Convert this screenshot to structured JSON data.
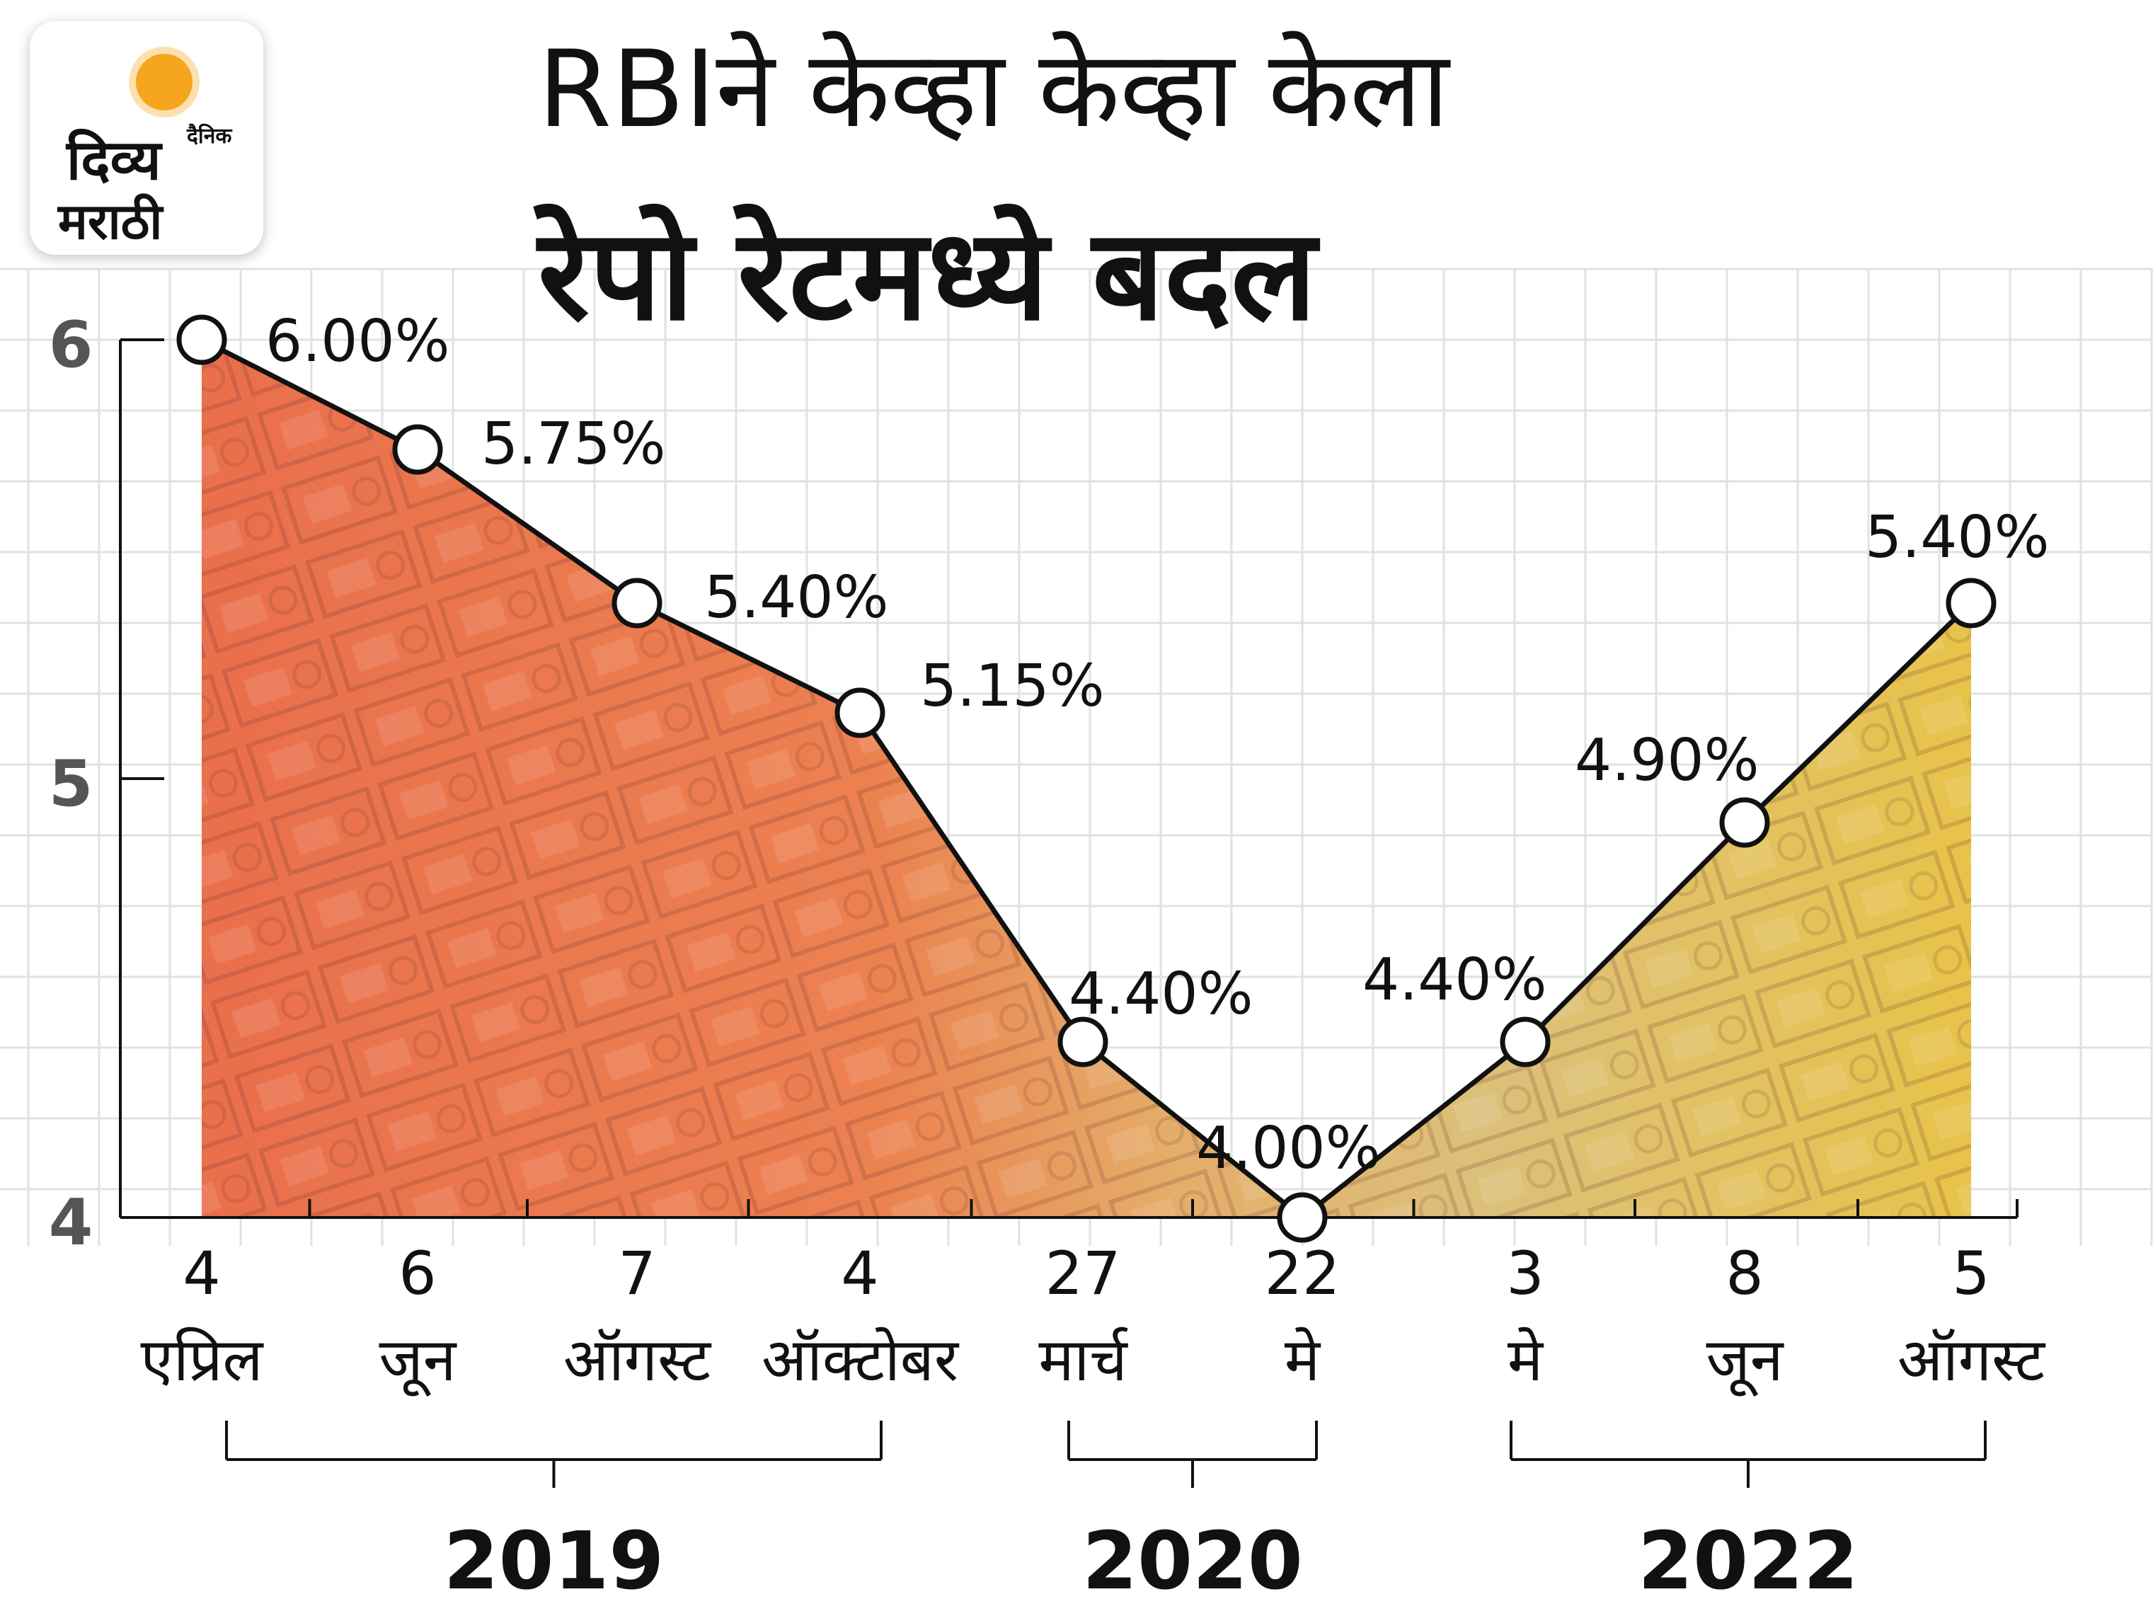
{
  "brand": {
    "small": "दैनिक",
    "name": "दिव्य",
    "sub": "मराठी"
  },
  "title": {
    "line1": "RBIने केव्हा केव्हा केला",
    "line2": "रेपो रेटमध्ये बदल"
  },
  "colors": {
    "area_left": "#e8704a",
    "area_right": "#e9c247",
    "grid": "#dcdcdc",
    "line": "#111111"
  },
  "chart_data": {
    "type": "line",
    "yticks": [
      "6",
      "5",
      "4"
    ],
    "ylim": [
      4,
      6
    ],
    "grid": true,
    "points": [
      {
        "day": "4",
        "month": "एप्रिल",
        "value": 6.0,
        "label": "6.00%"
      },
      {
        "day": "6",
        "month": "जून",
        "value": 5.75,
        "label": "5.75%"
      },
      {
        "day": "7",
        "month": "ऑगस्ट",
        "value": 5.4,
        "label": "5.40%"
      },
      {
        "day": "4",
        "month": "ऑक्टोबर",
        "value": 5.15,
        "label": "5.15%"
      },
      {
        "day": "27",
        "month": "मार्च",
        "value": 4.4,
        "label": "4.40%"
      },
      {
        "day": "22",
        "month": "मे",
        "value": 4.0,
        "label": "4.00%"
      },
      {
        "day": "3",
        "month": "मे",
        "value": 4.4,
        "label": "4.40%"
      },
      {
        "day": "8",
        "month": "जून",
        "value": 4.9,
        "label": "4.90%"
      },
      {
        "day": "5",
        "month": "ऑगस्ट",
        "value": 5.4,
        "label": "5.40%"
      }
    ],
    "year_groups": [
      {
        "year": "2019",
        "from": 0,
        "to": 3
      },
      {
        "year": "2020",
        "from": 4,
        "to": 5
      },
      {
        "year": "2022",
        "from": 6,
        "to": 8
      }
    ]
  }
}
